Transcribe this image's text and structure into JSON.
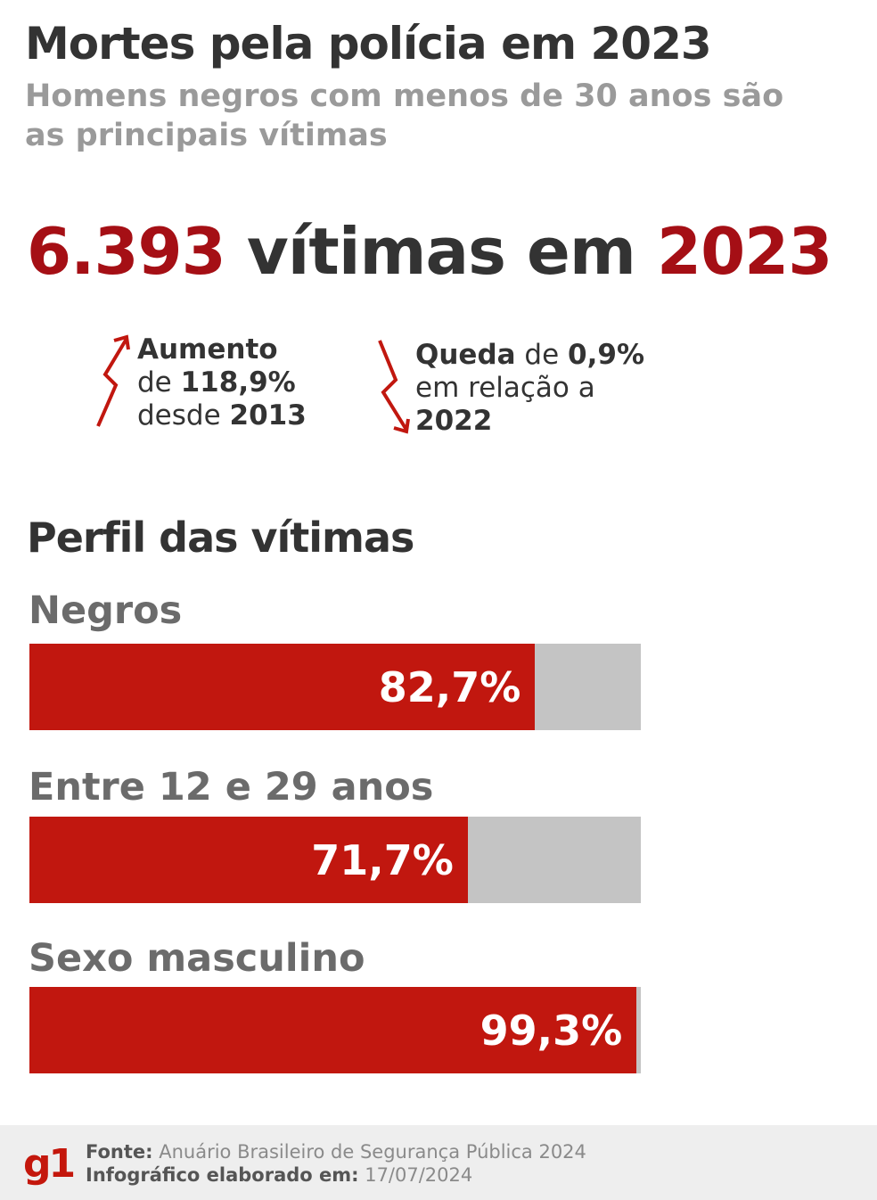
{
  "header": {
    "title": "Mortes pela polícia em 2023",
    "subtitle": "Homens negros com menos de 30 anos são as principais vítimas"
  },
  "headline": {
    "number": "6.393",
    "middle": " vítimas em ",
    "year": "2023"
  },
  "trends": {
    "increase": {
      "line1": "Aumento",
      "line2_prefix": "de ",
      "line2_value": "118,9%",
      "line3_prefix": "desde ",
      "line3_value": "2013"
    },
    "decrease": {
      "line1_bold": "Queda",
      "line1_mid": " de ",
      "line1_value": "0,9%",
      "line2": "em relação a",
      "line3": "2022"
    }
  },
  "section_title": "Perfil das vítimas",
  "chart_data": {
    "type": "bar",
    "orientation": "horizontal",
    "stacked_to_100": true,
    "categories": [
      "Negros",
      "Entre 12 e 29 anos",
      "Sexo masculino"
    ],
    "values": [
      82.7,
      71.7,
      99.3
    ],
    "value_labels": [
      "82,7%",
      "71,7%",
      "99,3%"
    ],
    "xlim": [
      0,
      100
    ],
    "colors": {
      "fill": "#c1170f",
      "remainder": "#c4c4c4"
    }
  },
  "footer": {
    "logo": "g1",
    "source_label": "Fonte:",
    "source_value": " Anuário Brasileiro de Segurança Pública 2024",
    "made_label": "Infográfico elaborado em:",
    "made_value": " 17/07/2024"
  },
  "colors": {
    "accent": "#a50f15",
    "bar": "#c1170f",
    "track": "#c4c4c4",
    "text": "#333333",
    "subtle": "#9a9a9a"
  }
}
